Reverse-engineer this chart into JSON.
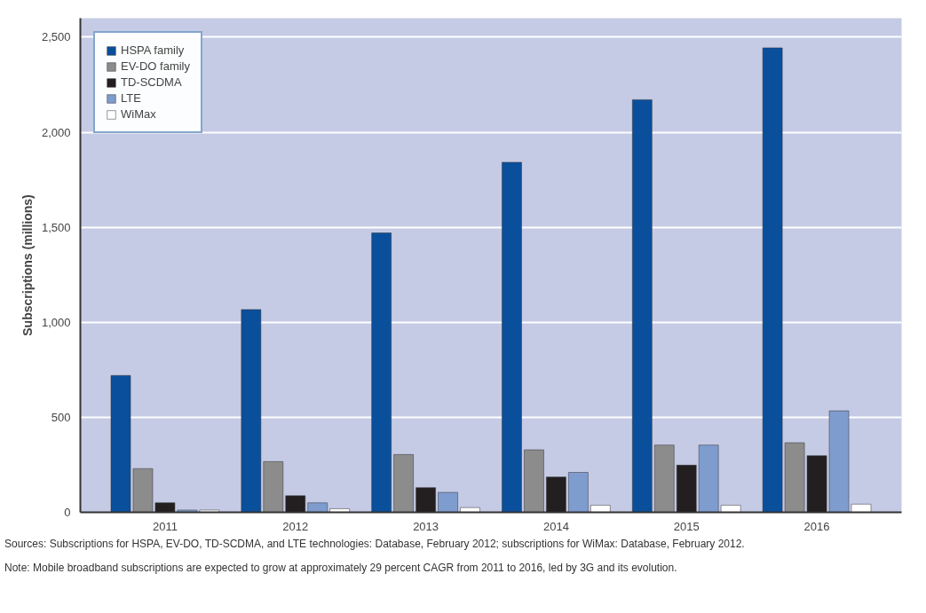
{
  "chart_data": {
    "type": "bar",
    "ylabel": "Subscriptions (millions)",
    "categories": [
      "2011",
      "2012",
      "2013",
      "2014",
      "2015",
      "2016"
    ],
    "series": [
      {
        "name": "HSPA family",
        "color": "#0a4f9c",
        "values": [
          720,
          1067,
          1470,
          1842,
          2171,
          2444
        ]
      },
      {
        "name": "EV-DO family",
        "color": "#8c8c8c",
        "values": [
          230,
          267,
          304,
          329,
          354,
          366
        ]
      },
      {
        "name": "TD-SCDMA",
        "color": "#231f20",
        "values": [
          50,
          87,
          130,
          186,
          248,
          298
        ]
      },
      {
        "name": "LTE",
        "color": "#7f9ccf",
        "values": [
          12,
          50,
          105,
          210,
          354,
          534
        ]
      },
      {
        "name": "WiMax",
        "color": "#ffffff",
        "values": [
          12,
          19,
          25,
          37,
          37,
          43
        ]
      }
    ],
    "ylim": [
      0,
      2600
    ],
    "yticks": [
      {
        "value": 0,
        "label": "0"
      },
      {
        "value": 500,
        "label": "500"
      },
      {
        "value": 1000,
        "label": "1,000"
      },
      {
        "value": 1500,
        "label": "1,500"
      },
      {
        "value": 2000,
        "label": "2,000"
      },
      {
        "value": 2500,
        "label": "2,500"
      }
    ],
    "grid": "y",
    "legend": "top left",
    "annotations": [
      "Sources: Subscriptions for HSPA, EV-DO, TD-SCDMA, and LTE technologies: Database, February 2012; subscriptions for WiMax: Database, February 2012.",
      "Note: Mobile broadband subscriptions are expected to grow at approximately 29 percent CAGR from 2011 to 2016, led by 3G and its evolution."
    ]
  }
}
